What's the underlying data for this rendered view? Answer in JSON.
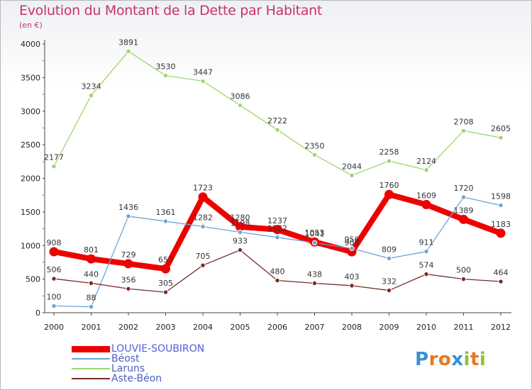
{
  "title": "Evolution du Montant de la Dette par Habitant",
  "subtitle": "(en €)",
  "logo": {
    "letters": [
      "P",
      "r",
      "o",
      "x",
      "i",
      "t",
      "i"
    ],
    "colors": [
      "#3a8fd6",
      "#e9781c",
      "#e9781c",
      "#3a8fd6",
      "#8fbf3a",
      "#e9781c",
      "#8fbf3a"
    ]
  },
  "chart_data": {
    "type": "line",
    "title": "Evolution du Montant de la Dette par Habitant",
    "ylabel": "(en €)",
    "xlabel": "",
    "x": [
      "2000",
      "2001",
      "2002",
      "2003",
      "2004",
      "2005",
      "2006",
      "2007",
      "2008",
      "2009",
      "2010",
      "2011",
      "2012"
    ],
    "ylim": [
      0,
      4000
    ],
    "yticks": [
      "0",
      "500",
      "1000",
      "1500",
      "2000",
      "2500",
      "3000",
      "3500",
      "4000"
    ],
    "grid": false,
    "legend": "bottom-left",
    "series": [
      {
        "name": "LOUVIE-SOUBIRON",
        "color": "#ee0000",
        "emphasis": true,
        "values": [
          908,
          801,
          729,
          653,
          1723,
          1280,
          1237,
          1053,
          906,
          1760,
          1609,
          1389,
          1183
        ]
      },
      {
        "name": "Béost",
        "color": "#6aa5d8",
        "values": [
          100,
          88,
          1436,
          1361,
          1282,
          1198,
          1122,
          1041,
          956,
          809,
          911,
          1720,
          1598
        ]
      },
      {
        "name": "Laruns",
        "color": "#9ed66a",
        "values": [
          2177,
          3234,
          3891,
          3530,
          3447,
          3086,
          2722,
          2350,
          2044,
          2258,
          2124,
          2708,
          2605
        ]
      },
      {
        "name": "Aste-Béon",
        "color": "#7a2a2a",
        "values": [
          506,
          440,
          356,
          305,
          705,
          933,
          480,
          438,
          403,
          332,
          574,
          500,
          464
        ]
      }
    ]
  }
}
